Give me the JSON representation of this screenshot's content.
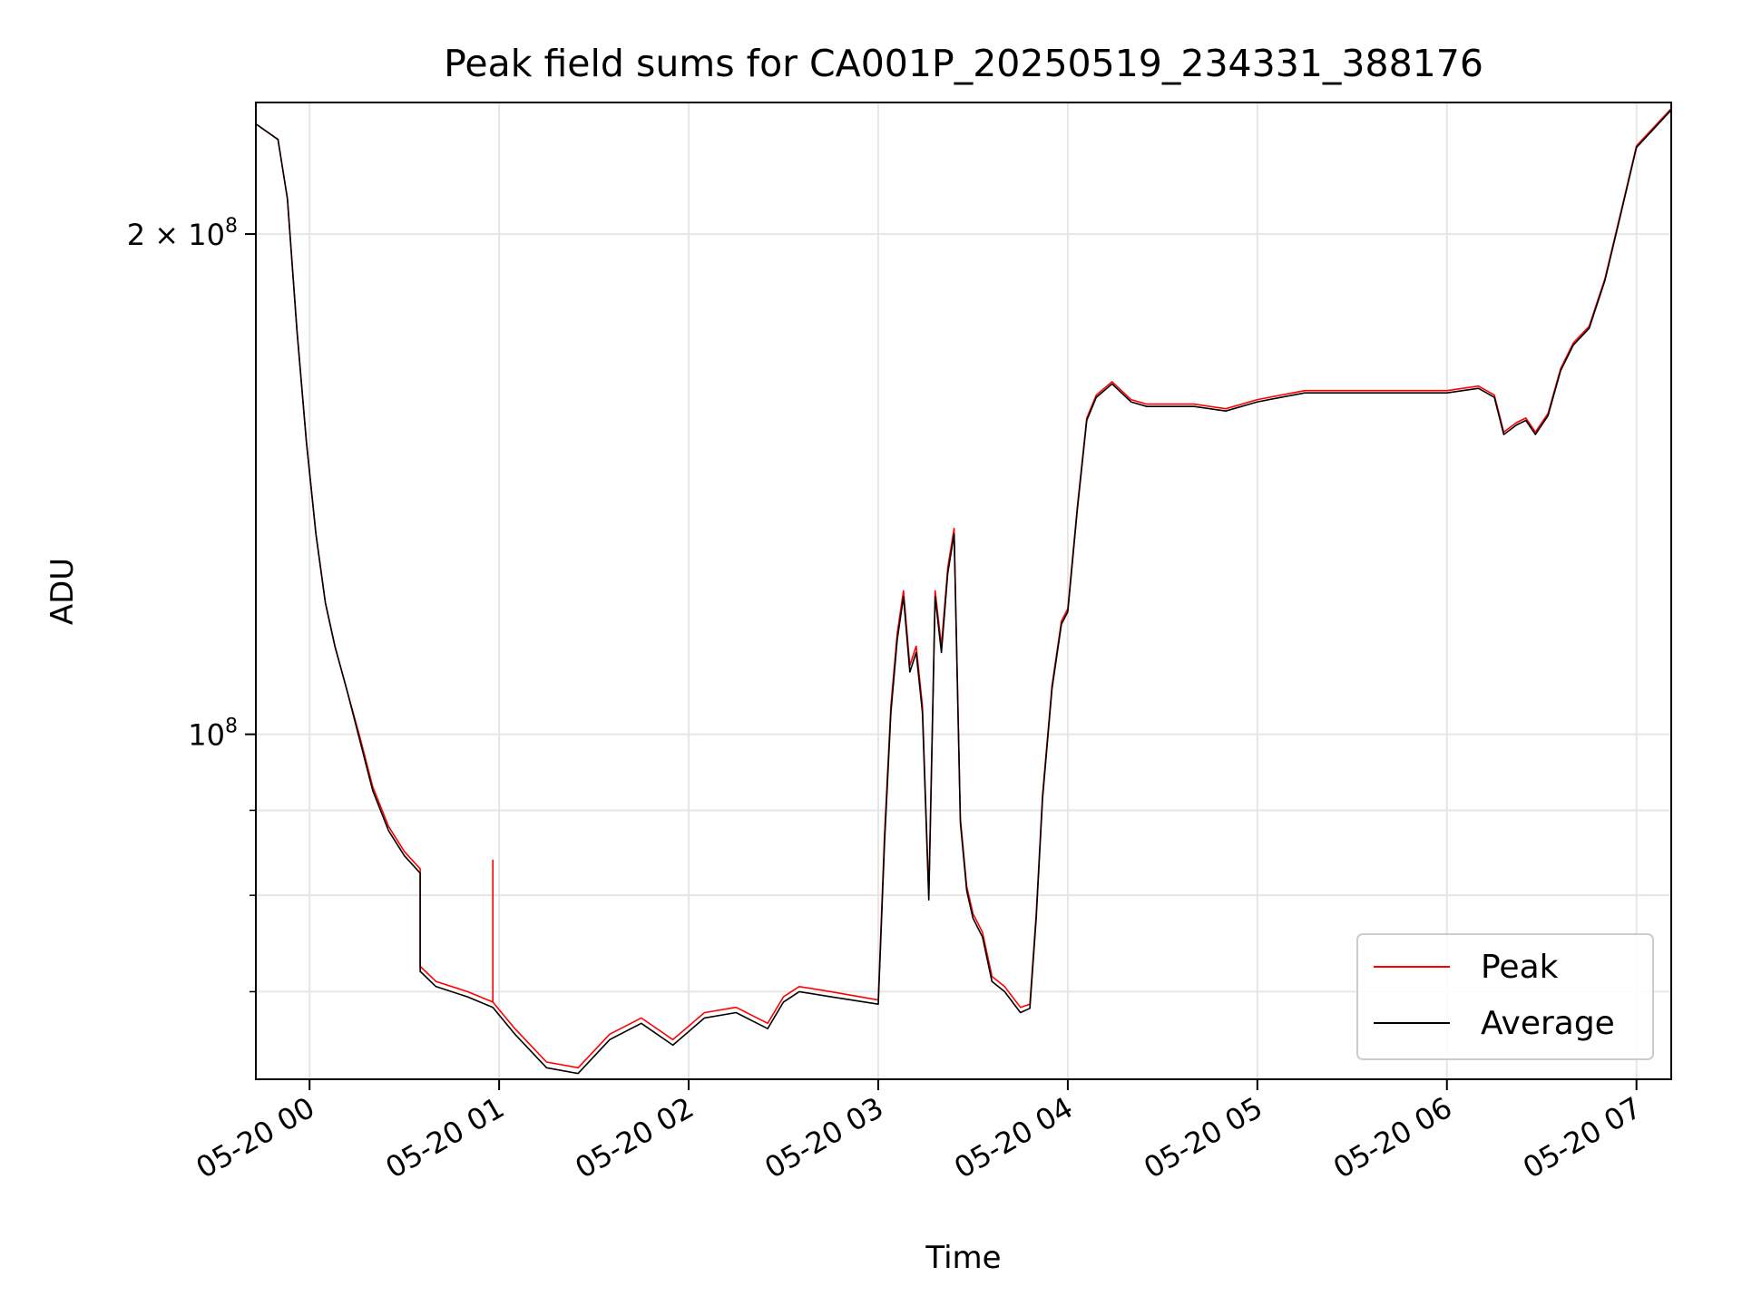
{
  "chart_data": {
    "type": "line",
    "title": "Peak field sums for CA001P_20250519_234331_388176",
    "xlabel": "Time",
    "ylabel": "ADU",
    "y_scale": "log",
    "ylim": [
      62000000,
      240000000
    ],
    "xlim": [
      "2025-05-19 23:43",
      "2025-05-20 07:11"
    ],
    "x_ticks": [
      {
        "time": "2025-05-20 00:00",
        "label": "05-20 00"
      },
      {
        "time": "2025-05-20 01:00",
        "label": "05-20 01"
      },
      {
        "time": "2025-05-20 02:00",
        "label": "05-20 02"
      },
      {
        "time": "2025-05-20 03:00",
        "label": "05-20 03"
      },
      {
        "time": "2025-05-20 04:00",
        "label": "05-20 04"
      },
      {
        "time": "2025-05-20 05:00",
        "label": "05-20 05"
      },
      {
        "time": "2025-05-20 06:00",
        "label": "05-20 06"
      },
      {
        "time": "2025-05-20 07:00",
        "label": "05-20 07"
      }
    ],
    "y_major_ticks": [
      {
        "value": 100000000,
        "label_base": "10",
        "label_exp": "8",
        "label_prefix": ""
      },
      {
        "value": 200000000,
        "label_base": "10",
        "label_exp": "8",
        "label_prefix": "2 × "
      }
    ],
    "y_minor_gridlines": [
      70000000,
      80000000,
      90000000
    ],
    "grid": true,
    "legend_position": "bottom-right",
    "series": [
      {
        "name": "Peak",
        "color": "#ff0000",
        "x": [
          "2025-05-19 23:43",
          "2025-05-19 23:50",
          "2025-05-19 23:53",
          "2025-05-19 23:56",
          "2025-05-19 23:59",
          "2025-05-20 00:02",
          "2025-05-20 00:05",
          "2025-05-20 00:08",
          "2025-05-20 00:12",
          "2025-05-20 00:16",
          "2025-05-20 00:20",
          "2025-05-20 00:25",
          "2025-05-20 00:30",
          "2025-05-20 00:35",
          "2025-05-20 00:35",
          "2025-05-20 00:40",
          "2025-05-20 00:50",
          "2025-05-20 00:58",
          "2025-05-20 00:58",
          "2025-05-20 00:58",
          "2025-05-20 01:05",
          "2025-05-20 01:15",
          "2025-05-20 01:25",
          "2025-05-20 01:35",
          "2025-05-20 01:45",
          "2025-05-20 01:55",
          "2025-05-20 02:05",
          "2025-05-20 02:15",
          "2025-05-20 02:25",
          "2025-05-20 02:30",
          "2025-05-20 02:35",
          "2025-05-20 02:45",
          "2025-05-20 03:00",
          "2025-05-20 03:02",
          "2025-05-20 03:04",
          "2025-05-20 03:06",
          "2025-05-20 03:08",
          "2025-05-20 03:10",
          "2025-05-20 03:12",
          "2025-05-20 03:14",
          "2025-05-20 03:16",
          "2025-05-20 03:18",
          "2025-05-20 03:20",
          "2025-05-20 03:22",
          "2025-05-20 03:24",
          "2025-05-20 03:26",
          "2025-05-20 03:28",
          "2025-05-20 03:30",
          "2025-05-20 03:33",
          "2025-05-20 03:36",
          "2025-05-20 03:40",
          "2025-05-20 03:45",
          "2025-05-20 03:48",
          "2025-05-20 03:50",
          "2025-05-20 03:52",
          "2025-05-20 03:55",
          "2025-05-20 03:58",
          "2025-05-20 04:00",
          "2025-05-20 04:03",
          "2025-05-20 04:06",
          "2025-05-20 04:09",
          "2025-05-20 04:14",
          "2025-05-20 04:20",
          "2025-05-20 04:25",
          "2025-05-20 04:30",
          "2025-05-20 04:40",
          "2025-05-20 04:50",
          "2025-05-20 05:00",
          "2025-05-20 05:15",
          "2025-05-20 05:30",
          "2025-05-20 05:45",
          "2025-05-20 06:00",
          "2025-05-20 06:10",
          "2025-05-20 06:15",
          "2025-05-20 06:18",
          "2025-05-20 06:22",
          "2025-05-20 06:25",
          "2025-05-20 06:28",
          "2025-05-20 06:32",
          "2025-05-20 06:36",
          "2025-05-20 06:40",
          "2025-05-20 06:45",
          "2025-05-20 06:50",
          "2025-05-20 06:55",
          "2025-05-20 07:00",
          "2025-05-20 07:11"
        ],
        "y": [
          233000000,
          228000000,
          210000000,
          175000000,
          150000000,
          132000000,
          120000000,
          113000000,
          106000000,
          99500000,
          93000000,
          88000000,
          85000000,
          83000000,
          72500000,
          71000000,
          70000000,
          69000000,
          84000000,
          69000000,
          66500000,
          63500000,
          63000000,
          66000000,
          67500000,
          65500000,
          68000000,
          68500000,
          67000000,
          69500000,
          70500000,
          70000000,
          69200000,
          87000000,
          104000000,
          115000000,
          122000000,
          110000000,
          113000000,
          104000000,
          80000000,
          122000000,
          113000000,
          126000000,
          133000000,
          89000000,
          81000000,
          78000000,
          76000000,
          71500000,
          70500000,
          68500000,
          68800000,
          78000000,
          92000000,
          107000000,
          117000000,
          119000000,
          137000000,
          155000000,
          160000000,
          163000000,
          159000000,
          158000000,
          158000000,
          158000000,
          157000000,
          159000000,
          161000000,
          161000000,
          161000000,
          161000000,
          162000000,
          160000000,
          152000000,
          154000000,
          155000000,
          152000000,
          156000000,
          166000000,
          172000000,
          176000000,
          188000000,
          206000000,
          226000000,
          238000000
        ]
      },
      {
        "name": "Average",
        "color": "#000000",
        "x": [
          "2025-05-19 23:43",
          "2025-05-19 23:50",
          "2025-05-19 23:53",
          "2025-05-19 23:56",
          "2025-05-19 23:59",
          "2025-05-20 00:02",
          "2025-05-20 00:05",
          "2025-05-20 00:08",
          "2025-05-20 00:12",
          "2025-05-20 00:16",
          "2025-05-20 00:20",
          "2025-05-20 00:25",
          "2025-05-20 00:30",
          "2025-05-20 00:35",
          "2025-05-20 00:35",
          "2025-05-20 00:40",
          "2025-05-20 00:50",
          "2025-05-20 00:58",
          "2025-05-20 01:05",
          "2025-05-20 01:15",
          "2025-05-20 01:25",
          "2025-05-20 01:35",
          "2025-05-20 01:45",
          "2025-05-20 01:55",
          "2025-05-20 02:05",
          "2025-05-20 02:15",
          "2025-05-20 02:25",
          "2025-05-20 02:30",
          "2025-05-20 02:35",
          "2025-05-20 02:45",
          "2025-05-20 03:00",
          "2025-05-20 03:02",
          "2025-05-20 03:04",
          "2025-05-20 03:06",
          "2025-05-20 03:08",
          "2025-05-20 03:10",
          "2025-05-20 03:12",
          "2025-05-20 03:14",
          "2025-05-20 03:16",
          "2025-05-20 03:18",
          "2025-05-20 03:20",
          "2025-05-20 03:22",
          "2025-05-20 03:24",
          "2025-05-20 03:26",
          "2025-05-20 03:28",
          "2025-05-20 03:30",
          "2025-05-20 03:33",
          "2025-05-20 03:36",
          "2025-05-20 03:40",
          "2025-05-20 03:45",
          "2025-05-20 03:48",
          "2025-05-20 03:50",
          "2025-05-20 03:52",
          "2025-05-20 03:55",
          "2025-05-20 03:58",
          "2025-05-20 04:00",
          "2025-05-20 04:03",
          "2025-05-20 04:06",
          "2025-05-20 04:09",
          "2025-05-20 04:14",
          "2025-05-20 04:20",
          "2025-05-20 04:25",
          "2025-05-20 04:30",
          "2025-05-20 04:40",
          "2025-05-20 04:50",
          "2025-05-20 05:00",
          "2025-05-20 05:15",
          "2025-05-20 05:30",
          "2025-05-20 05:45",
          "2025-05-20 06:00",
          "2025-05-20 06:10",
          "2025-05-20 06:15",
          "2025-05-20 06:18",
          "2025-05-20 06:22",
          "2025-05-20 06:25",
          "2025-05-20 06:28",
          "2025-05-20 06:32",
          "2025-05-20 06:36",
          "2025-05-20 06:40",
          "2025-05-20 06:45",
          "2025-05-20 06:50",
          "2025-05-20 06:55",
          "2025-05-20 07:00",
          "2025-05-20 07:11"
        ],
        "y": [
          233000000,
          228000000,
          210000000,
          175000000,
          150000000,
          132000000,
          120000000,
          113000000,
          106000000,
          99000000,
          92500000,
          87500000,
          84500000,
          82500000,
          72000000,
          70500000,
          69500000,
          68500000,
          66000000,
          63000000,
          62500000,
          65500000,
          67000000,
          65000000,
          67500000,
          68000000,
          66500000,
          69000000,
          70000000,
          69500000,
          68800000,
          86000000,
          103000000,
          114000000,
          121000000,
          109000000,
          112000000,
          103000000,
          79500000,
          121000000,
          112000000,
          125000000,
          132000000,
          88500000,
          80500000,
          77500000,
          75500000,
          71000000,
          70000000,
          68000000,
          68400000,
          77500000,
          91500000,
          106500000,
          116500000,
          118500000,
          136500000,
          154500000,
          159500000,
          162500000,
          158500000,
          157500000,
          157500000,
          157500000,
          156500000,
          158500000,
          160500000,
          160500000,
          160500000,
          160500000,
          161500000,
          159500000,
          151500000,
          153500000,
          154500000,
          151500000,
          155500000,
          165500000,
          171500000,
          175500000,
          187500000,
          205500000,
          225500000,
          237500000
        ]
      }
    ]
  }
}
